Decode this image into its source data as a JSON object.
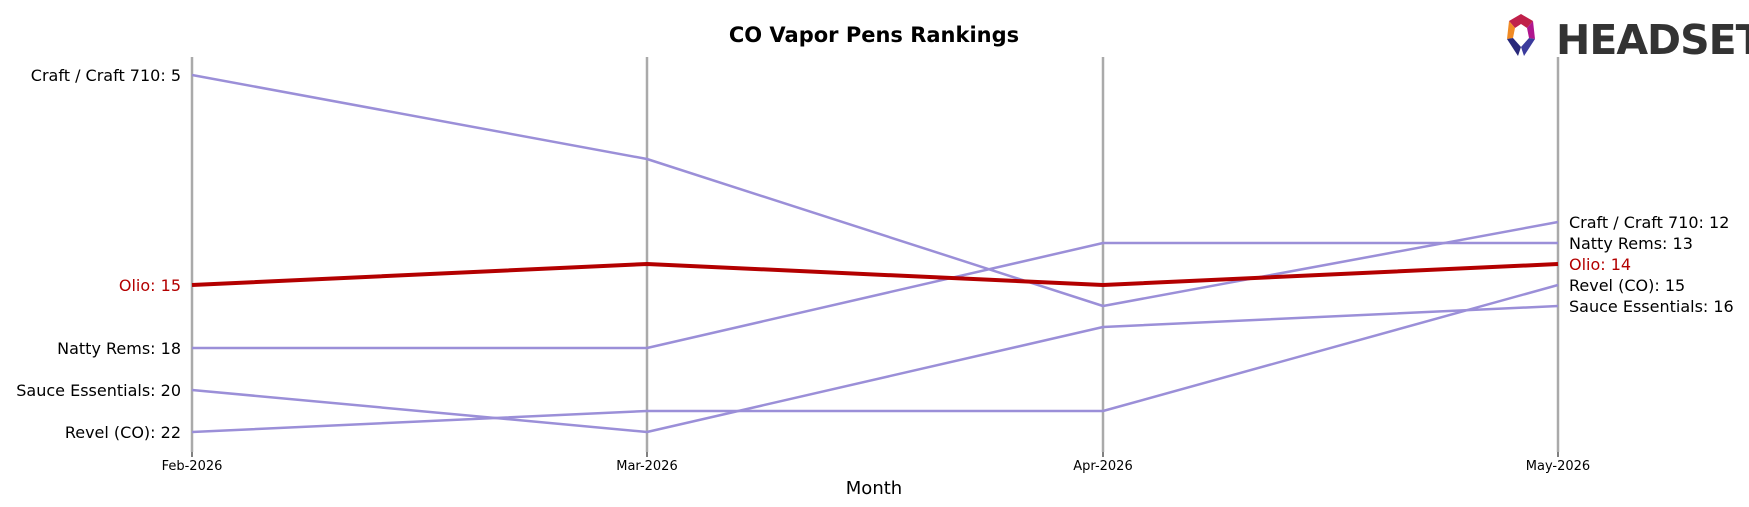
{
  "chart_data": {
    "type": "line",
    "title": "CO Vapor Pens Rankings",
    "xlabel": "Month",
    "ylabel": "",
    "categories": [
      "Feb-2026",
      "Mar-2026",
      "Apr-2026",
      "May-2026"
    ],
    "y_inverted": true,
    "ylim": [
      23,
      4
    ],
    "grid": "vertical lines at each month",
    "series": [
      {
        "name": "Craft / Craft 710",
        "values": [
          5,
          9,
          16,
          12
        ],
        "color": "#9b8fd8",
        "highlight": false
      },
      {
        "name": "Olio",
        "values": [
          15,
          14,
          15,
          14
        ],
        "color": "#b30000",
        "highlight": true
      },
      {
        "name": "Natty Rems",
        "values": [
          18,
          18,
          13,
          13
        ],
        "color": "#9b8fd8",
        "highlight": false
      },
      {
        "name": "Sauce Essentials",
        "values": [
          20,
          22,
          17,
          16
        ],
        "color": "#9b8fd8",
        "highlight": false
      },
      {
        "name": "Revel (CO)",
        "values": [
          22,
          21,
          21,
          15
        ],
        "color": "#9b8fd8",
        "highlight": false
      }
    ]
  },
  "logo": {
    "text": "HEADSET",
    "icon": "headset-hexagon-logo-icon"
  },
  "colors": {
    "grid": "#aaaaaa",
    "default_series": "#9b8fd8",
    "highlight": "#b30000",
    "label_text": "#000000"
  }
}
